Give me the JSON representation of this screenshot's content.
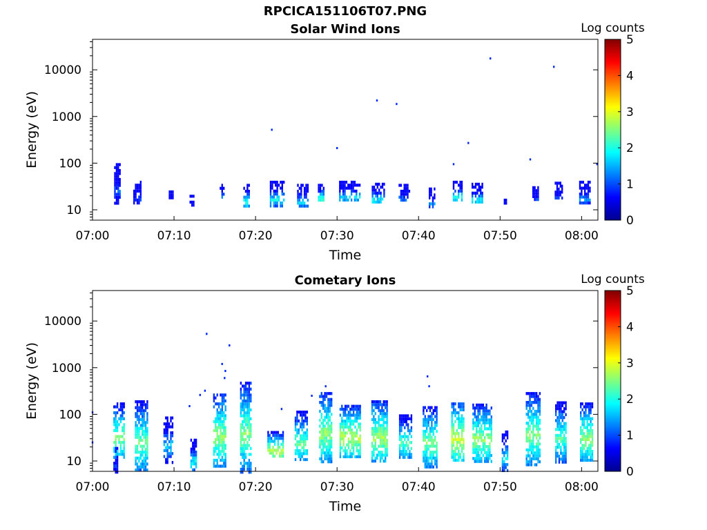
{
  "figure": {
    "title": "RPCICA151106T07.PNG"
  },
  "colors": {
    "axis": "#000000",
    "background": "#ffffff",
    "colormap": "jet"
  },
  "chart_data": [
    {
      "type": "heatmap",
      "title": "Solar Wind Ions",
      "xlabel": "Time",
      "ylabel": "Energy (eV)",
      "y_scale": "log",
      "ylim": [
        6,
        45000
      ],
      "xlim_minutes": [
        0,
        62
      ],
      "x_ticks": [
        "07:00",
        "07:10",
        "07:20",
        "07:30",
        "07:40",
        "07:50",
        "08:00"
      ],
      "y_ticks": [
        "10",
        "100",
        "1000",
        "10000"
      ],
      "colorbar": {
        "label": "Log counts",
        "range": [
          0,
          5
        ],
        "ticks": [
          "0",
          "1",
          "2",
          "3",
          "4",
          "5"
        ]
      },
      "clusters": [
        {
          "t": 3.0,
          "w": 0.7,
          "e_low": 13,
          "e_high": 100,
          "level": 1.1
        },
        {
          "t": 5.5,
          "w": 1.0,
          "e_low": 14,
          "e_high": 42,
          "level": 1.0
        },
        {
          "t": 9.6,
          "w": 0.5,
          "e_low": 17,
          "e_high": 26,
          "level": 0.8
        },
        {
          "t": 12.2,
          "w": 0.6,
          "e_low": 12,
          "e_high": 21,
          "level": 0.8
        },
        {
          "t": 15.8,
          "w": 0.8,
          "e_low": 19,
          "e_high": 36,
          "level": 1.6
        },
        {
          "t": 18.9,
          "w": 0.8,
          "e_low": 12,
          "e_high": 36,
          "level": 2.0
        },
        {
          "t": 22.6,
          "w": 1.7,
          "e_low": 13,
          "e_high": 42,
          "level": 1.9
        },
        {
          "t": 25.8,
          "w": 1.4,
          "e_low": 12,
          "e_high": 36,
          "level": 1.7
        },
        {
          "t": 28.0,
          "w": 0.7,
          "e_low": 17,
          "e_high": 36,
          "level": 2.3
        },
        {
          "t": 31.5,
          "w": 2.5,
          "e_low": 16,
          "e_high": 42,
          "level": 1.8
        },
        {
          "t": 35.0,
          "w": 1.5,
          "e_low": 14,
          "e_high": 38,
          "level": 1.9
        },
        {
          "t": 38.2,
          "w": 1.3,
          "e_low": 16,
          "e_high": 36,
          "level": 1.4
        },
        {
          "t": 41.6,
          "w": 0.7,
          "e_low": 12,
          "e_high": 30,
          "level": 1.3
        },
        {
          "t": 44.8,
          "w": 1.2,
          "e_low": 17,
          "e_high": 42,
          "level": 2.0
        },
        {
          "t": 47.2,
          "w": 1.4,
          "e_low": 14,
          "e_high": 38,
          "level": 1.9
        },
        {
          "t": 50.6,
          "w": 0.3,
          "e_low": 12,
          "e_high": 20,
          "level": 0.8
        },
        {
          "t": 54.3,
          "w": 0.7,
          "e_low": 17,
          "e_high": 32,
          "level": 0.9
        },
        {
          "t": 57.2,
          "w": 1.0,
          "e_low": 17,
          "e_high": 40,
          "level": 1.0
        },
        {
          "t": 60.4,
          "w": 1.4,
          "e_low": 14,
          "e_high": 42,
          "level": 1.4
        }
      ],
      "points": [
        {
          "t": 22.0,
          "e": 520,
          "level": 0.8
        },
        {
          "t": 30.0,
          "e": 210,
          "level": 0.8
        },
        {
          "t": 34.9,
          "e": 2200,
          "level": 0.8
        },
        {
          "t": 37.3,
          "e": 1850,
          "level": 0.8
        },
        {
          "t": 44.3,
          "e": 95,
          "level": 0.8
        },
        {
          "t": 46.1,
          "e": 270,
          "level": 0.8
        },
        {
          "t": 48.8,
          "e": 17500,
          "level": 0.8
        },
        {
          "t": 53.7,
          "e": 120,
          "level": 0.8
        },
        {
          "t": 56.6,
          "e": 11600,
          "level": 0.8
        },
        {
          "t": 61.9,
          "e": 95,
          "level": 0.8
        }
      ]
    },
    {
      "type": "heatmap",
      "title": "Cometary Ions",
      "xlabel": "Time",
      "ylabel": "Energy (eV)",
      "y_scale": "log",
      "ylim": [
        6,
        45000
      ],
      "xlim_minutes": [
        0,
        62
      ],
      "x_ticks": [
        "07:00",
        "07:10",
        "07:20",
        "07:30",
        "07:40",
        "07:50",
        "08:00"
      ],
      "y_ticks": [
        "10",
        "100",
        "1000",
        "10000"
      ],
      "colorbar": {
        "label": "Log counts",
        "range": [
          0,
          5
        ],
        "ticks": [
          "0",
          "1",
          "2",
          "3",
          "4",
          "5"
        ]
      },
      "clusters": [
        {
          "t": 2.8,
          "w": 0.5,
          "e_low": 6,
          "e_high": 20,
          "level": 1.0
        },
        {
          "t": 3.2,
          "w": 1.3,
          "e_low": 12,
          "e_high": 180,
          "level": 2.5
        },
        {
          "t": 6.0,
          "w": 1.6,
          "e_low": 6,
          "e_high": 200,
          "level": 2.4
        },
        {
          "t": 9.3,
          "w": 1.2,
          "e_low": 10,
          "e_high": 90,
          "level": 1.7
        },
        {
          "t": 12.4,
          "w": 0.8,
          "e_low": 6,
          "e_high": 30,
          "level": 1.9
        },
        {
          "t": 15.6,
          "w": 1.6,
          "e_low": 8,
          "e_high": 280,
          "level": 2.6
        },
        {
          "t": 18.8,
          "w": 1.4,
          "e_low": 6,
          "e_high": 500,
          "level": 2.5
        },
        {
          "t": 22.4,
          "w": 1.9,
          "e_low": 12,
          "e_high": 44,
          "level": 2.9
        },
        {
          "t": 25.6,
          "w": 1.6,
          "e_low": 10,
          "e_high": 120,
          "level": 2.4
        },
        {
          "t": 28.6,
          "w": 1.6,
          "e_low": 10,
          "e_high": 300,
          "level": 2.6
        },
        {
          "t": 31.6,
          "w": 2.6,
          "e_low": 13,
          "e_high": 160,
          "level": 2.8
        },
        {
          "t": 35.2,
          "w": 2.0,
          "e_low": 10,
          "e_high": 200,
          "level": 2.7
        },
        {
          "t": 38.4,
          "w": 1.6,
          "e_low": 12,
          "e_high": 100,
          "level": 2.3
        },
        {
          "t": 41.4,
          "w": 1.8,
          "e_low": 8,
          "e_high": 150,
          "level": 2.5
        },
        {
          "t": 44.8,
          "w": 1.6,
          "e_low": 10,
          "e_high": 180,
          "level": 2.9
        },
        {
          "t": 47.8,
          "w": 2.4,
          "e_low": 10,
          "e_high": 170,
          "level": 2.6
        },
        {
          "t": 50.6,
          "w": 0.8,
          "e_low": 6,
          "e_high": 45,
          "level": 1.8
        },
        {
          "t": 54.0,
          "w": 1.7,
          "e_low": 8,
          "e_high": 300,
          "level": 2.5
        },
        {
          "t": 57.4,
          "w": 1.3,
          "e_low": 10,
          "e_high": 190,
          "level": 2.3
        },
        {
          "t": 60.6,
          "w": 1.6,
          "e_low": 10,
          "e_high": 180,
          "level": 2.6
        }
      ],
      "points": [
        {
          "t": 0.0,
          "e": 110,
          "level": 0.8
        },
        {
          "t": 0.0,
          "e": 25,
          "level": 0.8
        },
        {
          "t": 11.9,
          "e": 150,
          "level": 0.8
        },
        {
          "t": 13.2,
          "e": 260,
          "level": 0.8
        },
        {
          "t": 13.8,
          "e": 320,
          "level": 0.8
        },
        {
          "t": 14.0,
          "e": 5300,
          "level": 0.8
        },
        {
          "t": 16.2,
          "e": 600,
          "level": 0.8
        },
        {
          "t": 15.9,
          "e": 1200,
          "level": 0.8
        },
        {
          "t": 16.3,
          "e": 850,
          "level": 0.8
        },
        {
          "t": 16.8,
          "e": 3000,
          "level": 0.8
        },
        {
          "t": 41.1,
          "e": 650,
          "level": 0.8
        },
        {
          "t": 41.3,
          "e": 400,
          "level": 0.8
        },
        {
          "t": 26.9,
          "e": 250,
          "level": 0.8
        },
        {
          "t": 28.6,
          "e": 400,
          "level": 0.8
        },
        {
          "t": 23.2,
          "e": 130,
          "level": 0.8
        }
      ]
    }
  ]
}
